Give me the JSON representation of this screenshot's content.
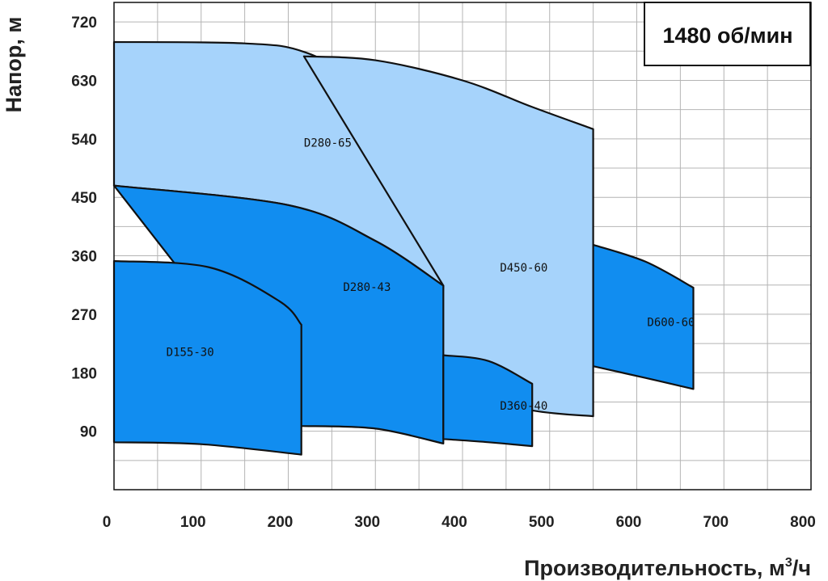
{
  "chart_data": {
    "type": "area",
    "speed_label": "1480 об/мин",
    "xlabel": "Производительность, м",
    "xlabel_sup": "3",
    "xlabel_suffix": "/ч",
    "ylabel": "Напор, м",
    "xlim": [
      0,
      800
    ],
    "ylim": [
      0,
      750
    ],
    "x_ticks": [
      "0",
      "100",
      "200",
      "300",
      "400",
      "500",
      "600",
      "700",
      "800"
    ],
    "y_ticks": [
      "90",
      "180",
      "270",
      "360",
      "450",
      "540",
      "630",
      "720"
    ],
    "grid": true,
    "colors": {
      "light": "#a6d3fb",
      "dark": "#118df0",
      "outline": "#111111",
      "grid": "#b4b4b4"
    },
    "series": [
      {
        "name": "D280-65",
        "fill": "light",
        "top": [
          [
            0,
            689
          ],
          [
            150,
            687
          ],
          [
            220,
            673
          ],
          [
            300,
            617
          ],
          [
            360,
            558
          ],
          [
            378,
            533
          ]
        ],
        "bottom": [
          [
            0,
            468
          ],
          [
            200,
            438
          ],
          [
            300,
            383
          ],
          [
            378,
            314
          ]
        ]
      },
      {
        "name": "D450-60",
        "fill": "light",
        "top": [
          [
            218,
            667
          ],
          [
            300,
            661
          ],
          [
            400,
            630
          ],
          [
            480,
            589
          ],
          [
            550,
            555
          ]
        ],
        "bottom": [
          [
            378,
            314
          ],
          [
            378,
            152
          ],
          [
            480,
            122
          ],
          [
            550,
            113
          ]
        ]
      },
      {
        "name": "D280-43",
        "fill": "dark",
        "top": [
          [
            0,
            468
          ],
          [
            200,
            438
          ],
          [
            300,
            383
          ],
          [
            378,
            314
          ]
        ],
        "bottom": [
          [
            215,
            98
          ],
          [
            300,
            94
          ],
          [
            378,
            71
          ]
        ]
      },
      {
        "name": "D155-30",
        "fill": "dark",
        "top": [
          [
            0,
            352
          ],
          [
            110,
            342
          ],
          [
            190,
            290
          ],
          [
            215,
            254
          ]
        ],
        "bottom": [
          [
            0,
            73
          ],
          [
            100,
            70
          ],
          [
            215,
            54
          ]
        ]
      },
      {
        "name": "D360-40",
        "fill": "dark",
        "top": [
          [
            378,
            207
          ],
          [
            430,
            198
          ],
          [
            480,
            163
          ]
        ],
        "bottom": [
          [
            378,
            78
          ],
          [
            430,
            73
          ],
          [
            480,
            67
          ]
        ]
      },
      {
        "name": "D600-60",
        "fill": "dark",
        "top": [
          [
            550,
            377
          ],
          [
            610,
            351
          ],
          [
            665,
            311
          ]
        ],
        "bottom": [
          [
            550,
            190
          ],
          [
            610,
            172
          ],
          [
            665,
            155
          ]
        ]
      }
    ],
    "labels": [
      {
        "text": "D280-65",
        "x": 218,
        "y": 528
      },
      {
        "text": "D450-60",
        "x": 443,
        "y": 336
      },
      {
        "text": "D280-43",
        "x": 263,
        "y": 306
      },
      {
        "text": "D155-30",
        "x": 60,
        "y": 206
      },
      {
        "text": "D360-40",
        "x": 443,
        "y": 123
      },
      {
        "text": "D600-60",
        "x": 612,
        "y": 252
      }
    ]
  }
}
